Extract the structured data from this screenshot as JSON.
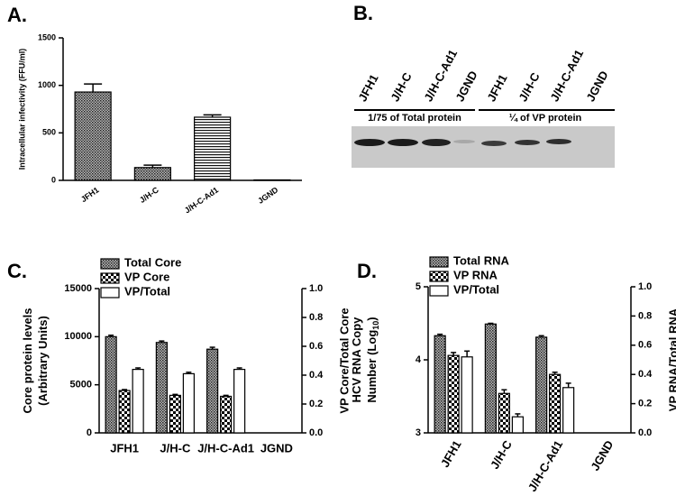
{
  "chart_data": [
    {
      "type": "bar",
      "panel": "A.",
      "ylabel": "Intracellular infectivity (FFU/ml)",
      "categories": [
        "JFH1",
        "J/H-C",
        "J/H-C-Ad1",
        "JGND"
      ],
      "values": [
        930,
        135,
        665,
        5
      ],
      "errors": [
        85,
        25,
        25,
        0
      ],
      "patterns": [
        "crosshatch",
        "crosshatch",
        "hlines",
        "crosshatch"
      ],
      "color": "#000000",
      "ylim": [
        0,
        1500
      ],
      "yticks": [
        0,
        500,
        1000,
        1500
      ]
    },
    {
      "type": "bar",
      "panel": "C.",
      "ylabel_lines": [
        "Core protein levels",
        "(Arbitrary Units)"
      ],
      "y2label": "VP Core/Total Core",
      "categories": [
        "JFH1",
        "J/H-C",
        "J/H-C-Ad1",
        "JGND"
      ],
      "series": [
        {
          "name": "Total Core",
          "pattern": "crosshatch",
          "values": [
            10000,
            9400,
            8700,
            0
          ],
          "errors": [
            150,
            150,
            200,
            0
          ]
        },
        {
          "name": "VP Core",
          "pattern": "checker",
          "values": [
            4400,
            3900,
            3800,
            0
          ],
          "errors": [
            100,
            100,
            100,
            0
          ]
        },
        {
          "name": "VP/Total",
          "pattern": "none",
          "axis": "y2",
          "values": [
            0.44,
            0.41,
            0.44,
            0
          ],
          "errors": [
            0.01,
            0.01,
            0.01,
            0
          ]
        }
      ],
      "color": "#000000",
      "legend": "top-left",
      "ylim": [
        0,
        15000
      ],
      "yticks": [
        0,
        5000,
        10000,
        15000
      ],
      "y2lim": [
        0,
        1
      ],
      "y2ticks": [
        {
          "value": 0,
          "label": "0.0"
        },
        0.2,
        0.4,
        0.6,
        0.8,
        {
          "value": 1,
          "label": "1.0"
        }
      ]
    },
    {
      "type": "bar",
      "panel": "D.",
      "ylabel_lines": [
        "HCV RNA Copy",
        "Number (Log"
      ],
      "ylabel_subscript": "10",
      "ylabel_suffix": ")",
      "y2label": "VP RNA/Total RNA",
      "categories": [
        "JFH1",
        "J/H-C",
        "J/H-C-Ad1",
        "JGND"
      ],
      "series": [
        {
          "name": "Total RNA",
          "pattern": "crosshatch",
          "values": [
            4.33,
            4.49,
            4.31,
            3
          ],
          "errors": [
            0.02,
            0.01,
            0.02,
            0
          ]
        },
        {
          "name": "VP RNA",
          "pattern": "checker",
          "values": [
            4.06,
            3.54,
            3.8,
            3
          ],
          "errors": [
            0.04,
            0.05,
            0.03,
            0
          ]
        },
        {
          "name": "VP/Total",
          "pattern": "none",
          "axis": "y2",
          "values": [
            0.52,
            0.11,
            0.31,
            0
          ],
          "errors": [
            0.04,
            0.02,
            0.03,
            0
          ]
        }
      ],
      "color": "#000000",
      "legend": "top-left",
      "ylim": [
        3,
        5
      ],
      "yticks": [
        3,
        4,
        5
      ],
      "y2lim": [
        0,
        1
      ],
      "y2ticks": [
        {
          "value": 0,
          "label": "0.0"
        },
        0.2,
        0.4,
        0.6,
        0.8,
        {
          "value": 1,
          "label": "1.0"
        }
      ]
    }
  ],
  "blot": {
    "panel": "B.",
    "lanes": [
      "JFH1",
      "J/H-C",
      "J/H-C-Ad1",
      "JGND",
      "JFH1",
      "J/H-C",
      "J/H-C-Ad1",
      "JGND"
    ],
    "groups": [
      "1/75 of Total protein",
      "¼ of VP protein"
    ]
  }
}
